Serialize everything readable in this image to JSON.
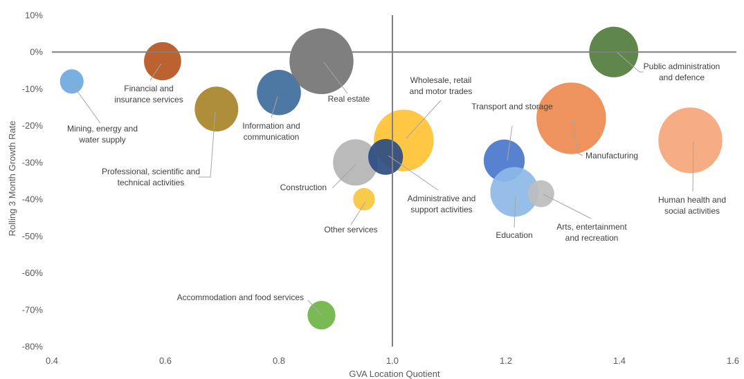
{
  "chart_data": {
    "type": "bubble",
    "xlabel": "GVA Location Quotient",
    "ylabel": "Rolling 3 Month Growth Rate",
    "xlim": [
      0.4,
      1.6
    ],
    "ylim": [
      -80,
      10
    ],
    "x_ticks": [
      "0.4",
      "0.6",
      "0.8",
      "1.0",
      "1.2",
      "1.4",
      "1.6"
    ],
    "y_ticks": [
      "10%",
      "0%",
      "-10%",
      "-20%",
      "-30%",
      "-40%",
      "-50%",
      "-60%",
      "-70%",
      "-80%"
    ],
    "grid": false,
    "cross_lines": {
      "x": 1.0,
      "y": 0
    },
    "series": [
      {
        "label_lines": [
          "Mining, energy and",
          "water supply"
        ],
        "x": 0.435,
        "y": -8,
        "size": 1.3,
        "color": "#6FA8E0"
      },
      {
        "label_lines": [
          "Financial and",
          "insurance services"
        ],
        "x": 0.595,
        "y": -2.5,
        "size": 3.2,
        "color": "#B5551E"
      },
      {
        "label_lines": [
          "Professional, scientific and",
          "technical activities"
        ],
        "x": 0.69,
        "y": -15.5,
        "size": 4.4,
        "color": "#A88428"
      },
      {
        "label_lines": [
          "Information and",
          "communication"
        ],
        "x": 0.8,
        "y": -11,
        "size": 4.5,
        "color": "#3F6C9C"
      },
      {
        "label_lines": [
          "Real estate"
        ],
        "x": 0.875,
        "y": -2.5,
        "size": 9.5,
        "color": "#747474"
      },
      {
        "label_lines": [
          "Construction"
        ],
        "x": 0.935,
        "y": -30,
        "size": 4.7,
        "color": "#B4B4B4"
      },
      {
        "label_lines": [
          "Other services"
        ],
        "x": 0.95,
        "y": -40,
        "size": 1.1,
        "color": "#F7C73E"
      },
      {
        "label_lines": [
          "Accommodation and food services"
        ],
        "x": 0.875,
        "y": -71.5,
        "size": 1.8,
        "color": "#6FB445"
      },
      {
        "label_lines": [
          "Wholesale, retail",
          "and motor trades"
        ],
        "x": 1.02,
        "y": -24,
        "size": 8.3,
        "color": "#FFC233"
      },
      {
        "label_lines": [
          "Administrative and",
          "support activities"
        ],
        "x": 0.988,
        "y": -28.5,
        "size": 2.8,
        "color": "#2D4C83"
      },
      {
        "label_lines": [
          "Transport and storage"
        ],
        "x": 1.197,
        "y": -29.5,
        "size": 3.9,
        "color": "#4A77CC"
      },
      {
        "label_lines": [
          "Education"
        ],
        "x": 1.215,
        "y": -38,
        "size": 5.4,
        "color": "#8DB9E7"
      },
      {
        "label_lines": [
          "Arts, entertainment",
          "and recreation"
        ],
        "x": 1.262,
        "y": -38.5,
        "size": 1.6,
        "color": "#BDBDBD"
      },
      {
        "label_lines": [
          "Manufacturing"
        ],
        "x": 1.315,
        "y": -18,
        "size": 11.2,
        "color": "#EE8A50"
      },
      {
        "label_lines": [
          "Public administration",
          "and defence"
        ],
        "x": 1.39,
        "y": 0,
        "size": 5.6,
        "color": "#527D3C"
      },
      {
        "label_lines": [
          "Human health and",
          "social activities"
        ],
        "x": 1.525,
        "y": -24,
        "size": 9.5,
        "color": "#F6A678"
      }
    ]
  }
}
